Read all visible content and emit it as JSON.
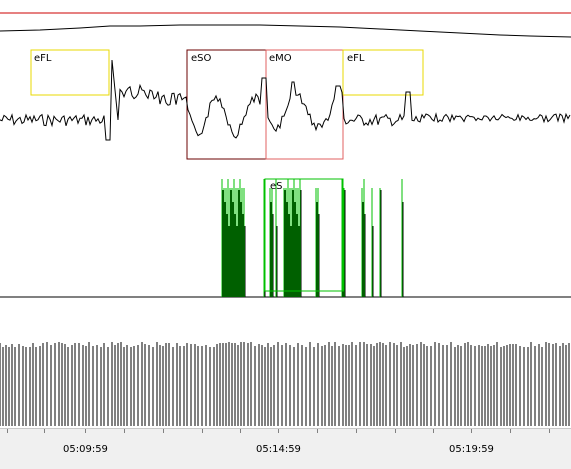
{
  "events": {
    "efl_left": "eFL",
    "eso": "eSO",
    "emo": "eMO",
    "efl_right": "eFL",
    "es": "eS"
  },
  "time_axis": {
    "labels": [
      "05:09:59",
      "05:14:59",
      "05:19:59"
    ]
  },
  "colors": {
    "background": "#ffffff",
    "trace": "#000000",
    "top_marker_line": "#cc0000",
    "event_fl": "#e8d800",
    "event_so": "#6b0000",
    "event_mo": "#e06060",
    "event_s": "#00c000",
    "axis_background": "#f0f0f0"
  }
}
